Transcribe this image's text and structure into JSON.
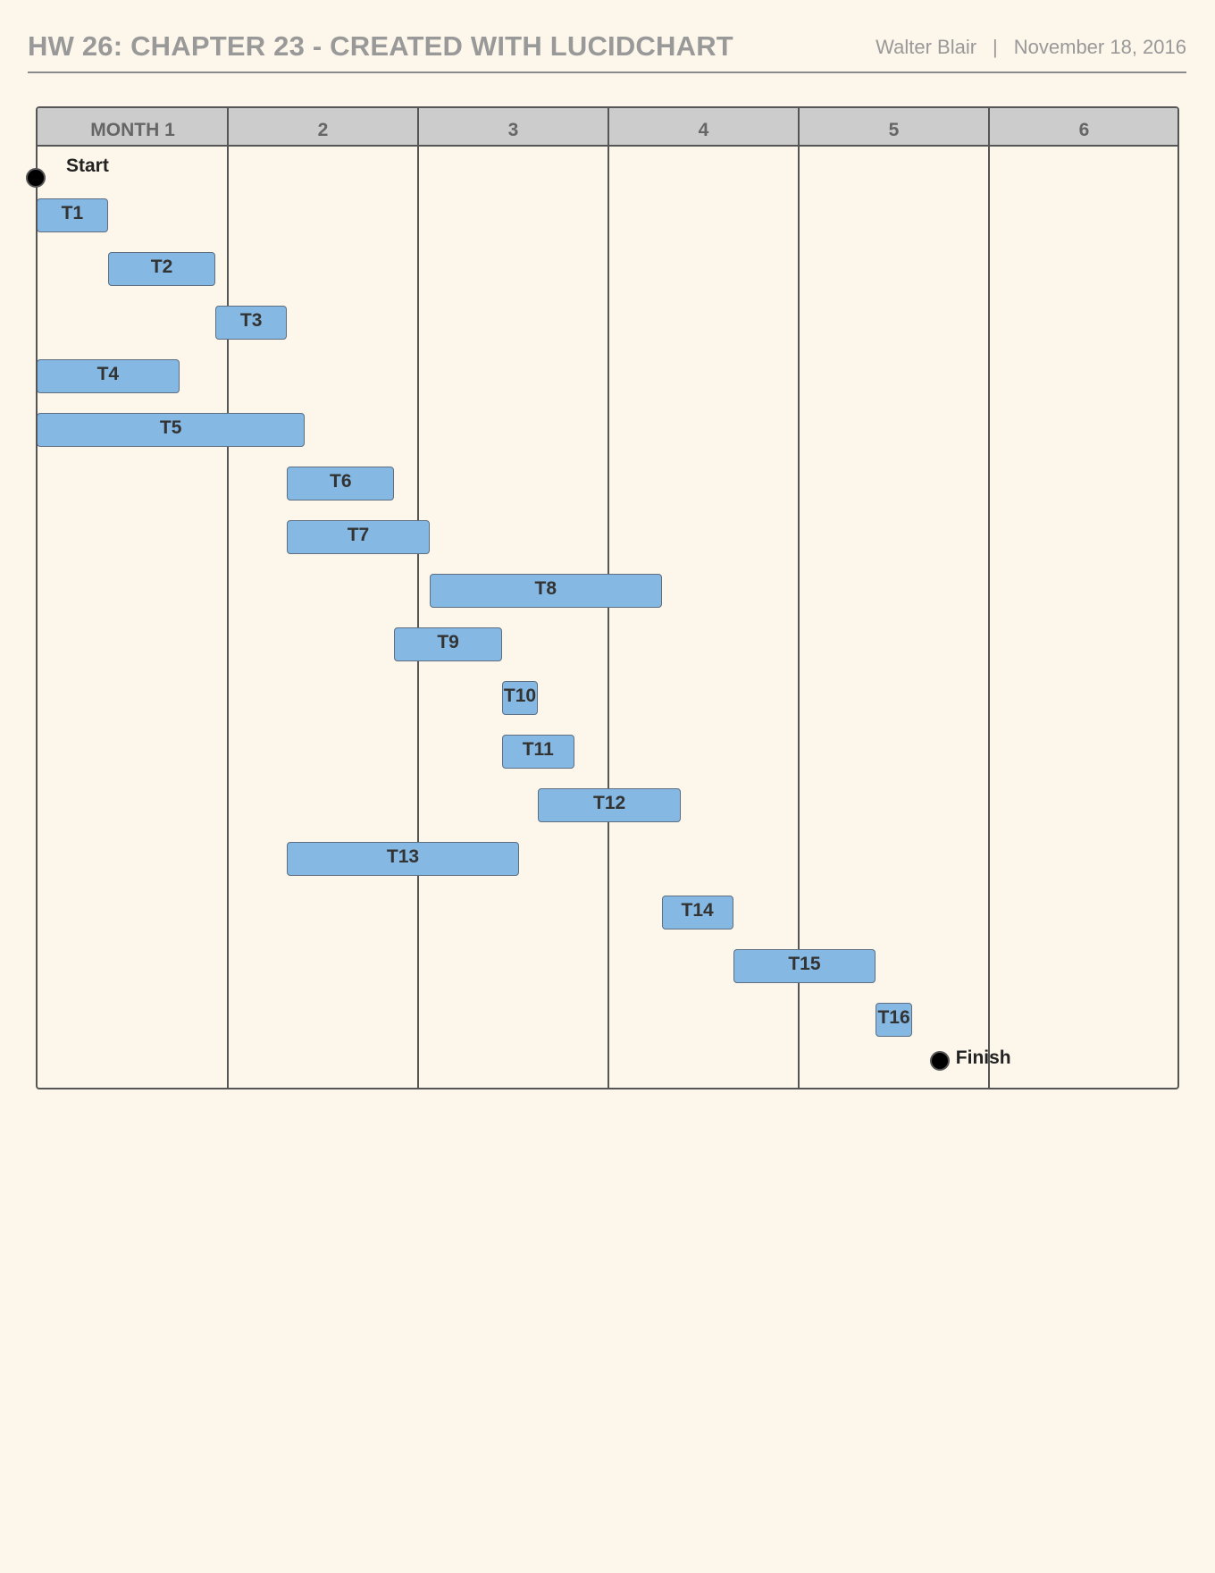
{
  "header": {
    "title": "HW 26: CHAPTER 23 - CREATED WITH LUCIDCHART",
    "author": "Walter Blair",
    "separator": "|",
    "date": "November 18, 2016"
  },
  "gantt": {
    "columns": [
      "MONTH 1",
      "2",
      "3",
      "4",
      "5",
      "6"
    ],
    "start_label": "Start",
    "finish_label": "Finish",
    "tasks": [
      {
        "label": "T1",
        "start": 0.0,
        "end": 0.375
      },
      {
        "label": "T2",
        "start": 0.375,
        "end": 0.94
      },
      {
        "label": "T3",
        "start": 0.94,
        "end": 1.315
      },
      {
        "label": "T4",
        "start": 0.0,
        "end": 0.75
      },
      {
        "label": "T5",
        "start": 0.0,
        "end": 1.41
      },
      {
        "label": "T6",
        "start": 1.315,
        "end": 1.88
      },
      {
        "label": "T7",
        "start": 1.315,
        "end": 2.065
      },
      {
        "label": "T8",
        "start": 2.065,
        "end": 3.285
      },
      {
        "label": "T9",
        "start": 1.88,
        "end": 2.445
      },
      {
        "label": "T10",
        "start": 2.445,
        "end": 2.635
      },
      {
        "label": "T11",
        "start": 2.445,
        "end": 2.825
      },
      {
        "label": "T12",
        "start": 2.635,
        "end": 3.385
      },
      {
        "label": "T13",
        "start": 1.315,
        "end": 2.535
      },
      {
        "label": "T14",
        "start": 3.285,
        "end": 3.66
      },
      {
        "label": "T15",
        "start": 3.66,
        "end": 4.41
      },
      {
        "label": "T16",
        "start": 4.41,
        "end": 4.6
      }
    ],
    "finish_month": 4.6
  }
}
